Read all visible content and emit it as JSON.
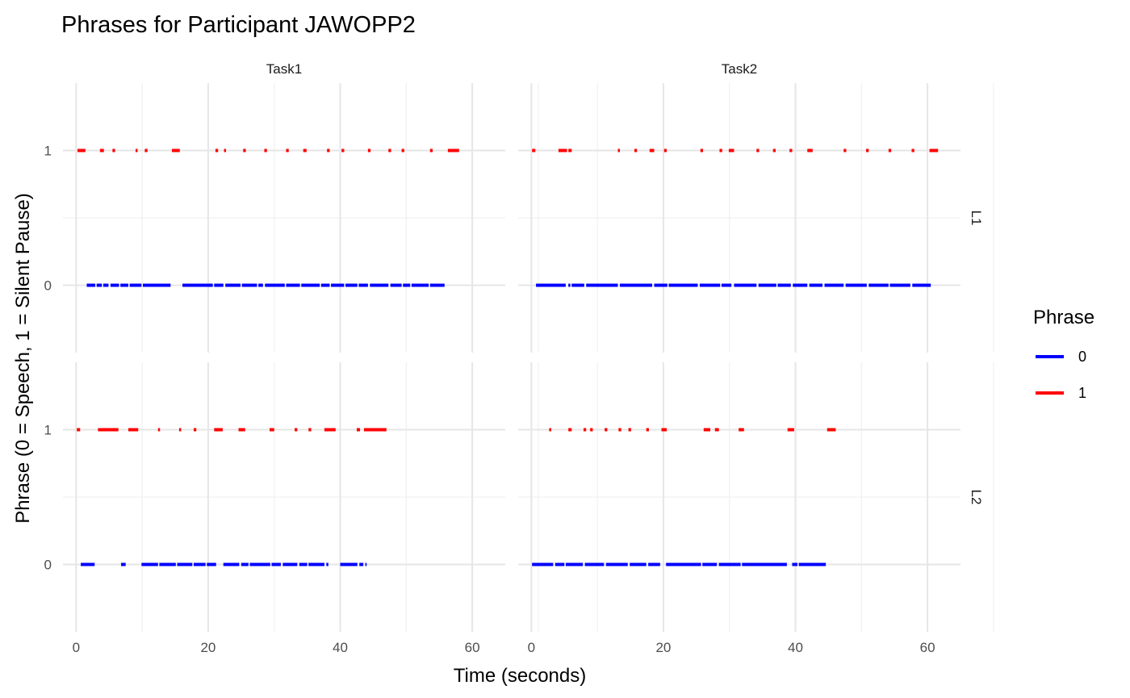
{
  "chart_data": {
    "type": "line",
    "title": "Phrases for Participant JAWOPP2",
    "xlabel": "Time (seconds)",
    "ylabel": "Phrase (0 = Speech, 1 = Silent Pause)",
    "col_facets": [
      "Task1",
      "Task2"
    ],
    "row_facets": [
      "L1",
      "L2"
    ],
    "xlim": [
      -2,
      65
    ],
    "ylim": [
      -0.5,
      1.5
    ],
    "x_ticks": [
      0,
      20,
      40,
      60
    ],
    "y_ticks": [
      0,
      1
    ],
    "grid": true,
    "legend": {
      "title": "Phrase",
      "placement": "right",
      "entries": [
        {
          "label": "0",
          "color": "#0000ff"
        },
        {
          "label": "1",
          "color": "#ff0000"
        }
      ]
    },
    "panels": [
      {
        "row": "L1",
        "col": "Task1",
        "series": [
          {
            "name": "0",
            "color": "#0000ff",
            "y": 0,
            "segments": [
              [
                1.6,
                2.9
              ],
              [
                3.1,
                3.9
              ],
              [
                4.1,
                4.9
              ],
              [
                5.2,
                6.5
              ],
              [
                6.7,
                7.9
              ],
              [
                8.1,
                9.9
              ],
              [
                10.1,
                14.3
              ],
              [
                16.1,
                20.7
              ],
              [
                20.9,
                22.3
              ],
              [
                22.6,
                24.9
              ],
              [
                25.1,
                27.4
              ],
              [
                27.6,
                28.3
              ],
              [
                28.6,
                31.6
              ],
              [
                31.8,
                33.9
              ],
              [
                34.1,
                36.9
              ],
              [
                37.1,
                38.4
              ],
              [
                38.6,
                40.6
              ],
              [
                40.8,
                42.6
              ],
              [
                42.8,
                44.2
              ],
              [
                44.5,
                47.3
              ],
              [
                47.6,
                49.3
              ],
              [
                49.5,
                50.6
              ],
              [
                50.8,
                53.4
              ],
              [
                53.6,
                55.8
              ]
            ]
          },
          {
            "name": "1",
            "color": "#ff0000",
            "y": 1,
            "segments": [
              [
                0.2,
                1.4
              ],
              [
                3.6,
                4.2
              ],
              [
                5.5,
                5.9
              ],
              [
                9.0,
                9.3
              ],
              [
                10.4,
                10.8
              ],
              [
                14.5,
                15.7
              ],
              [
                21.1,
                21.5
              ],
              [
                22.4,
                22.7
              ],
              [
                25.3,
                25.7
              ],
              [
                28.5,
                28.9
              ],
              [
                31.8,
                32.2
              ],
              [
                34.4,
                34.9
              ],
              [
                38.0,
                38.4
              ],
              [
                40.2,
                40.6
              ],
              [
                44.2,
                44.6
              ],
              [
                47.3,
                47.7
              ],
              [
                49.3,
                49.7
              ],
              [
                53.6,
                54.0
              ],
              [
                56.3,
                58.0
              ]
            ]
          }
        ]
      },
      {
        "row": "L1",
        "col": "Task2",
        "series": [
          {
            "name": "0",
            "color": "#0000ff",
            "y": 0,
            "segments": [
              [
                0.7,
                5.2
              ],
              [
                5.6,
                5.9
              ],
              [
                6.1,
                8.0
              ],
              [
                8.3,
                13.1
              ],
              [
                13.4,
                18.3
              ],
              [
                18.6,
                20.6
              ],
              [
                20.8,
                25.2
              ],
              [
                25.5,
                28.6
              ],
              [
                28.8,
                30.3
              ],
              [
                30.7,
                34.1
              ],
              [
                34.4,
                37.1
              ],
              [
                37.3,
                39.3
              ],
              [
                39.6,
                41.8
              ],
              [
                42.1,
                44.1
              ],
              [
                44.4,
                47.3
              ],
              [
                47.6,
                50.8
              ],
              [
                51.1,
                54.1
              ],
              [
                54.3,
                57.4
              ],
              [
                57.7,
                60.5
              ]
            ]
          },
          {
            "name": "1",
            "color": "#ff0000",
            "y": 1,
            "segments": [
              [
                0.1,
                0.6
              ],
              [
                4.1,
                5.4
              ],
              [
                5.6,
                6.1
              ],
              [
                13.1,
                13.4
              ],
              [
                15.6,
                16.0
              ],
              [
                17.9,
                18.6
              ],
              [
                20.1,
                20.5
              ],
              [
                25.6,
                26.0
              ],
              [
                28.5,
                28.9
              ],
              [
                29.9,
                30.7
              ],
              [
                34.1,
                34.5
              ],
              [
                36.6,
                37.0
              ],
              [
                39.1,
                39.5
              ],
              [
                41.8,
                42.6
              ],
              [
                47.3,
                47.7
              ],
              [
                50.7,
                51.1
              ],
              [
                54.1,
                54.5
              ],
              [
                57.6,
                58.0
              ],
              [
                60.3,
                61.6
              ]
            ]
          }
        ]
      },
      {
        "row": "L2",
        "col": "Task1",
        "series": [
          {
            "name": "0",
            "color": "#0000ff",
            "y": 0,
            "segments": [
              [
                0.7,
                2.8
              ],
              [
                6.8,
                7.5
              ],
              [
                9.9,
                12.4
              ],
              [
                12.6,
                15.1
              ],
              [
                15.3,
                17.6
              ],
              [
                17.8,
                19.6
              ],
              [
                19.8,
                21.2
              ],
              [
                22.3,
                24.7
              ],
              [
                25.0,
                26.1
              ],
              [
                26.3,
                29.4
              ],
              [
                29.6,
                31.0
              ],
              [
                31.3,
                33.5
              ],
              [
                33.8,
                35.0
              ],
              [
                35.2,
                37.6
              ],
              [
                37.9,
                38.2
              ],
              [
                40.0,
                42.6
              ],
              [
                42.9,
                43.5
              ],
              [
                43.8,
                44.0
              ]
            ]
          },
          {
            "name": "1",
            "color": "#ff0000",
            "y": 1,
            "segments": [
              [
                0.1,
                0.6
              ],
              [
                3.3,
                6.4
              ],
              [
                7.9,
                9.4
              ],
              [
                12.4,
                12.7
              ],
              [
                15.6,
                15.9
              ],
              [
                17.8,
                18.2
              ],
              [
                20.9,
                22.2
              ],
              [
                24.6,
                25.6
              ],
              [
                29.3,
                30.0
              ],
              [
                33.1,
                33.5
              ],
              [
                35.2,
                35.6
              ],
              [
                37.6,
                39.3
              ],
              [
                42.5,
                43.0
              ],
              [
                43.6,
                47.0
              ]
            ]
          }
        ]
      },
      {
        "row": "L2",
        "col": "Task2",
        "series": [
          {
            "name": "0",
            "color": "#0000ff",
            "y": 0,
            "segments": [
              [
                0.1,
                3.3
              ],
              [
                3.6,
                5.0
              ],
              [
                5.2,
                7.8
              ],
              [
                8.1,
                11.0
              ],
              [
                11.3,
                14.6
              ],
              [
                14.9,
                17.4
              ],
              [
                17.7,
                19.5
              ],
              [
                20.4,
                25.7
              ],
              [
                25.9,
                28.1
              ],
              [
                28.4,
                31.7
              ],
              [
                31.9,
                38.7
              ],
              [
                39.5,
                40.3
              ],
              [
                40.5,
                44.6
              ]
            ]
          },
          {
            "name": "1",
            "color": "#ff0000",
            "y": 1,
            "segments": [
              [
                2.7,
                3.0
              ],
              [
                5.6,
                6.1
              ],
              [
                7.9,
                8.3
              ],
              [
                8.9,
                9.3
              ],
              [
                11.1,
                11.5
              ],
              [
                13.2,
                13.6
              ],
              [
                14.7,
                15.1
              ],
              [
                17.4,
                17.8
              ],
              [
                19.7,
                20.5
              ],
              [
                26.1,
                27.1
              ],
              [
                27.8,
                28.4
              ],
              [
                31.4,
                32.2
              ],
              [
                38.8,
                39.8
              ],
              [
                44.8,
                46.1
              ]
            ]
          }
        ]
      }
    ]
  }
}
